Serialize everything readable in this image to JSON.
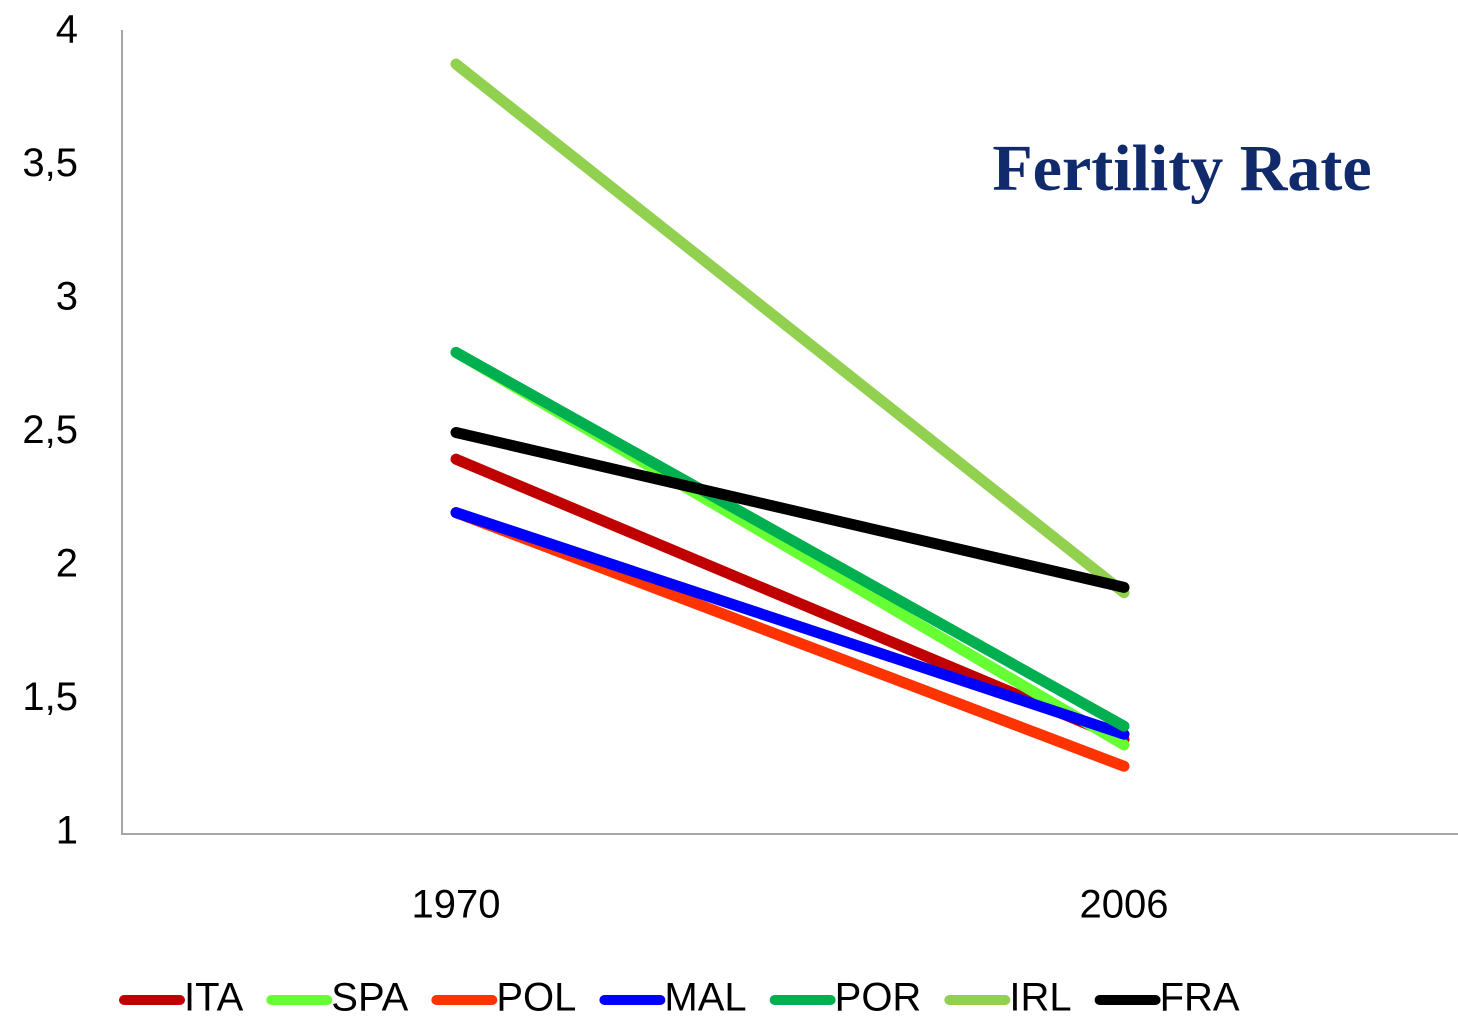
{
  "chart_data": {
    "type": "line",
    "title": "Fertility Rate",
    "categories": [
      "1970",
      "2006"
    ],
    "series": [
      {
        "name": "ITA",
        "color": "#c00000",
        "values": [
          2.4,
          1.35
        ]
      },
      {
        "name": "SPA",
        "color": "#66ff33",
        "values": [
          2.8,
          1.33
        ]
      },
      {
        "name": "POL",
        "color": "#ff3300",
        "values": [
          2.2,
          1.25
        ]
      },
      {
        "name": "MAL",
        "color": "#0000ff",
        "values": [
          2.2,
          1.37
        ]
      },
      {
        "name": "POR",
        "color": "#00b050",
        "values": [
          2.8,
          1.4
        ]
      },
      {
        "name": "IRL",
        "color": "#92d050",
        "values": [
          3.88,
          1.9
        ]
      },
      {
        "name": "FRA",
        "color": "#000000",
        "values": [
          2.5,
          1.92
        ]
      }
    ],
    "ylim": [
      1,
      4
    ],
    "yticks": [
      1,
      {
        "value": 1.5,
        "label": "1,5"
      },
      2,
      {
        "value": 2.5,
        "label": "2,5"
      },
      3,
      {
        "value": 3.5,
        "label": "3,5"
      },
      4
    ],
    "grid": false,
    "legend": "bottom"
  }
}
